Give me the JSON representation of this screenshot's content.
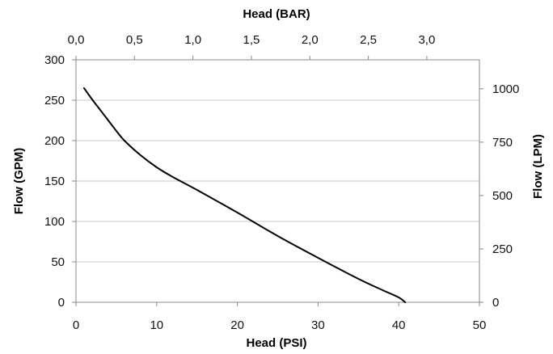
{
  "chart_data": {
    "type": "line",
    "xlabel": "Head (PSI)",
    "ylabel": "Flow (GPM)",
    "x2label": "Head (BAR)",
    "y2label": "Flow (LPM)",
    "xlim": [
      0,
      50
    ],
    "ylim": [
      0,
      300
    ],
    "x2lim": [
      0,
      3.45
    ],
    "y2lim": [
      0,
      1135.6
    ],
    "xticks": [
      "0",
      "10",
      "20",
      "30",
      "40",
      "50"
    ],
    "yticks": [
      "0",
      "50",
      "100",
      "150",
      "200",
      "250",
      "300"
    ],
    "x2ticks": [
      "0,0",
      "0,5",
      "1,0",
      "1,5",
      "2,0",
      "2,5",
      "3,0"
    ],
    "y2ticks": [
      "0",
      "250",
      "500",
      "750",
      "1000"
    ],
    "grid": "horizontal",
    "colors": {
      "line": "#000000",
      "grid": "#c8c8c8",
      "axis": "#888888"
    },
    "series": [
      {
        "x": [
          1,
          2,
          3,
          4,
          5,
          6,
          8,
          10,
          12,
          15,
          20,
          25,
          30,
          35,
          38,
          40,
          40.8
        ],
        "y": [
          265,
          251,
          238,
          225,
          212,
          200,
          182,
          167,
          155,
          139,
          111,
          82,
          55,
          29,
          15,
          6,
          0
        ]
      }
    ]
  }
}
